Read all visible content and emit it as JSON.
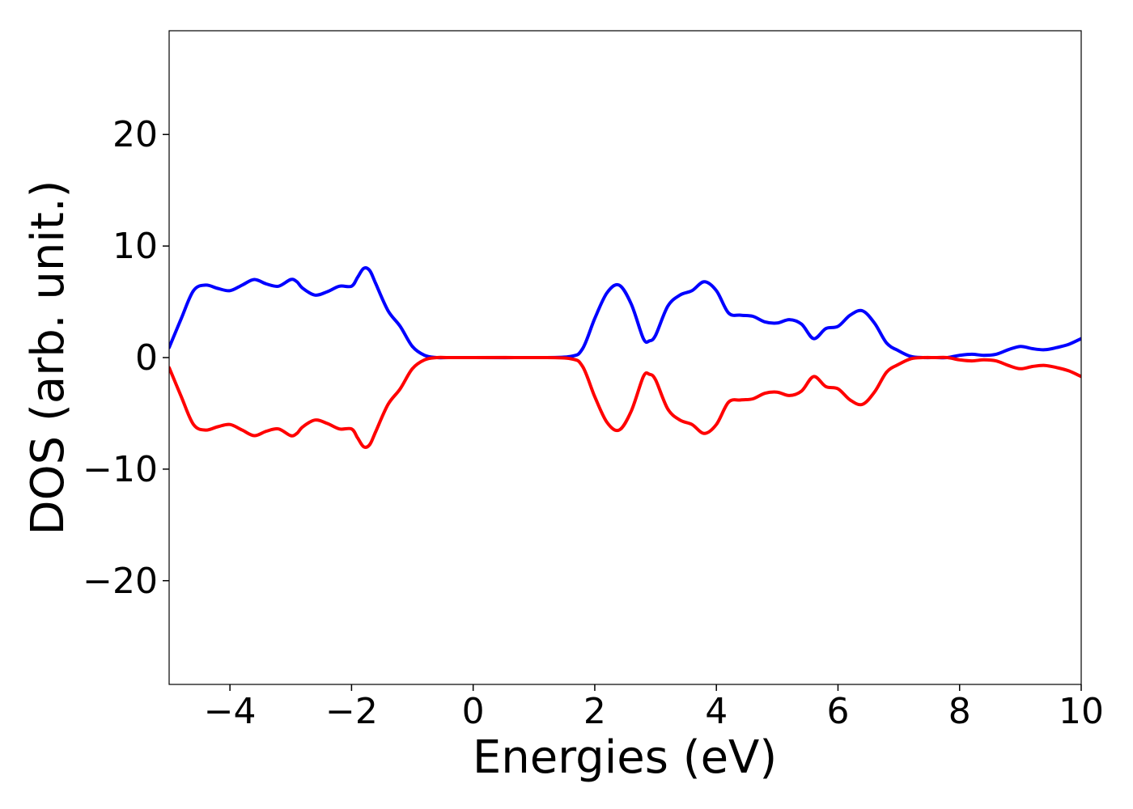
{
  "chart_data": {
    "type": "line",
    "title": "",
    "xlabel": "Energies (eV)",
    "ylabel": "DOS (arb. unit.)",
    "xlim": [
      -5,
      10
    ],
    "ylim": [
      -29.3,
      29.3
    ],
    "grid": false,
    "legend": "none",
    "xticks": [
      {
        "value": -4,
        "label": "−4"
      },
      {
        "value": -2,
        "label": "−2"
      },
      {
        "value": 0,
        "label": "0"
      },
      {
        "value": 2,
        "label": "2"
      },
      {
        "value": 4,
        "label": "4"
      },
      {
        "value": 6,
        "label": "6"
      },
      {
        "value": 8,
        "label": "8"
      },
      {
        "value": 10,
        "label": "10"
      }
    ],
    "yticks": [
      {
        "value": -20,
        "label": "−20"
      },
      {
        "value": -10,
        "label": "−10"
      },
      {
        "value": 0,
        "label": "0"
      },
      {
        "value": 10,
        "label": "10"
      },
      {
        "value": 20,
        "label": "20"
      }
    ],
    "series": [
      {
        "color": "#0000ff",
        "x": [
          -5.0,
          -4.8,
          -4.6,
          -4.4,
          -4.2,
          -4.0,
          -3.8,
          -3.6,
          -3.4,
          -3.2,
          -3.0,
          -2.9,
          -2.8,
          -2.6,
          -2.4,
          -2.2,
          -2.0,
          -1.9,
          -1.8,
          -1.7,
          -1.6,
          -1.4,
          -1.2,
          -1.0,
          -0.8,
          -0.6,
          -0.4,
          0.0,
          1.0,
          1.6,
          1.8,
          2.0,
          2.2,
          2.4,
          2.6,
          2.8,
          2.9,
          3.0,
          3.2,
          3.4,
          3.6,
          3.8,
          4.0,
          4.2,
          4.4,
          4.6,
          4.8,
          5.0,
          5.2,
          5.4,
          5.6,
          5.8,
          6.0,
          6.2,
          6.4,
          6.6,
          6.8,
          7.0,
          7.2,
          7.4,
          7.6,
          7.8,
          8.0,
          8.2,
          8.4,
          8.6,
          8.8,
          9.0,
          9.2,
          9.4,
          9.6,
          9.8,
          10.0
        ],
        "values": [
          0.9,
          3.5,
          6.0,
          6.5,
          6.2,
          6.0,
          6.5,
          7.0,
          6.6,
          6.4,
          7.0,
          6.8,
          6.2,
          5.6,
          5.9,
          6.4,
          6.4,
          7.2,
          8.0,
          7.8,
          6.6,
          4.2,
          2.8,
          1.0,
          0.2,
          0.0,
          0.0,
          0.0,
          0.0,
          0.1,
          0.8,
          3.5,
          5.8,
          6.5,
          4.8,
          1.7,
          1.5,
          2.0,
          4.6,
          5.6,
          6.0,
          6.8,
          6.0,
          4.0,
          3.8,
          3.7,
          3.2,
          3.1,
          3.4,
          3.0,
          1.7,
          2.6,
          2.8,
          3.8,
          4.2,
          3.1,
          1.3,
          0.6,
          0.1,
          0.0,
          0.0,
          0.0,
          0.2,
          0.3,
          0.2,
          0.3,
          0.7,
          1.0,
          0.8,
          0.7,
          0.9,
          1.2,
          1.7
        ]
      },
      {
        "color": "#ff0000",
        "x": [
          -5.0,
          -4.8,
          -4.6,
          -4.4,
          -4.2,
          -4.0,
          -3.8,
          -3.6,
          -3.4,
          -3.2,
          -3.0,
          -2.9,
          -2.8,
          -2.6,
          -2.4,
          -2.2,
          -2.0,
          -1.9,
          -1.8,
          -1.7,
          -1.6,
          -1.4,
          -1.2,
          -1.0,
          -0.8,
          -0.6,
          -0.4,
          0.0,
          1.0,
          1.6,
          1.8,
          2.0,
          2.2,
          2.4,
          2.6,
          2.8,
          2.9,
          3.0,
          3.2,
          3.4,
          3.6,
          3.8,
          4.0,
          4.2,
          4.4,
          4.6,
          4.8,
          5.0,
          5.2,
          5.4,
          5.6,
          5.8,
          6.0,
          6.2,
          6.4,
          6.6,
          6.8,
          7.0,
          7.2,
          7.4,
          7.6,
          7.8,
          8.0,
          8.2,
          8.4,
          8.6,
          8.8,
          9.0,
          9.2,
          9.4,
          9.6,
          9.8,
          10.0
        ],
        "values": [
          -0.9,
          -3.5,
          -6.0,
          -6.5,
          -6.2,
          -6.0,
          -6.5,
          -7.0,
          -6.6,
          -6.4,
          -7.0,
          -6.8,
          -6.2,
          -5.6,
          -5.9,
          -6.4,
          -6.4,
          -7.2,
          -8.0,
          -7.8,
          -6.6,
          -4.2,
          -2.8,
          -1.0,
          -0.2,
          0.0,
          0.0,
          0.0,
          0.0,
          -0.1,
          -0.8,
          -3.5,
          -5.8,
          -6.5,
          -4.8,
          -1.7,
          -1.5,
          -2.0,
          -4.6,
          -5.6,
          -6.0,
          -6.8,
          -6.0,
          -4.0,
          -3.8,
          -3.7,
          -3.2,
          -3.1,
          -3.4,
          -3.0,
          -1.7,
          -2.6,
          -2.8,
          -3.8,
          -4.2,
          -3.1,
          -1.3,
          -0.6,
          -0.1,
          0.0,
          0.0,
          0.0,
          -0.2,
          -0.3,
          -0.2,
          -0.3,
          -0.7,
          -1.0,
          -0.8,
          -0.7,
          -0.9,
          -1.2,
          -1.7
        ]
      }
    ]
  }
}
